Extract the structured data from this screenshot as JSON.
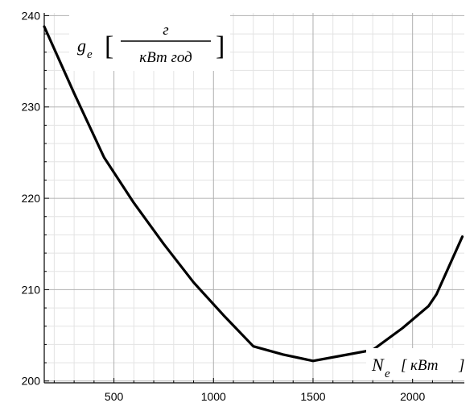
{
  "chart_data": {
    "type": "line",
    "x_ticks": [
      500,
      1000,
      1500,
      2000
    ],
    "y_ticks": [
      200,
      210,
      220,
      230,
      240
    ],
    "xlim": [
      150,
      2260
    ],
    "ylim": [
      199.8,
      240.3
    ],
    "grid": true,
    "ylabel": {
      "symbol": "g",
      "subscript": "e",
      "unit_numerator": "г",
      "unit_denominator": "кВт год"
    },
    "xlabel": {
      "symbol": "N",
      "subscript": "e",
      "unit": "кВт"
    },
    "series": [
      {
        "x": [
          150,
          300,
          450,
          600,
          750,
          900,
          1050,
          1200,
          1350,
          1500,
          1650,
          1800,
          1950,
          2080,
          2120,
          2250
        ],
        "y": [
          238.8,
          231.5,
          224.5,
          219.5,
          215.0,
          210.8,
          207.2,
          203.8,
          202.9,
          202.2,
          202.8,
          203.4,
          205.8,
          208.2,
          209.5,
          215.8
        ]
      }
    ]
  }
}
